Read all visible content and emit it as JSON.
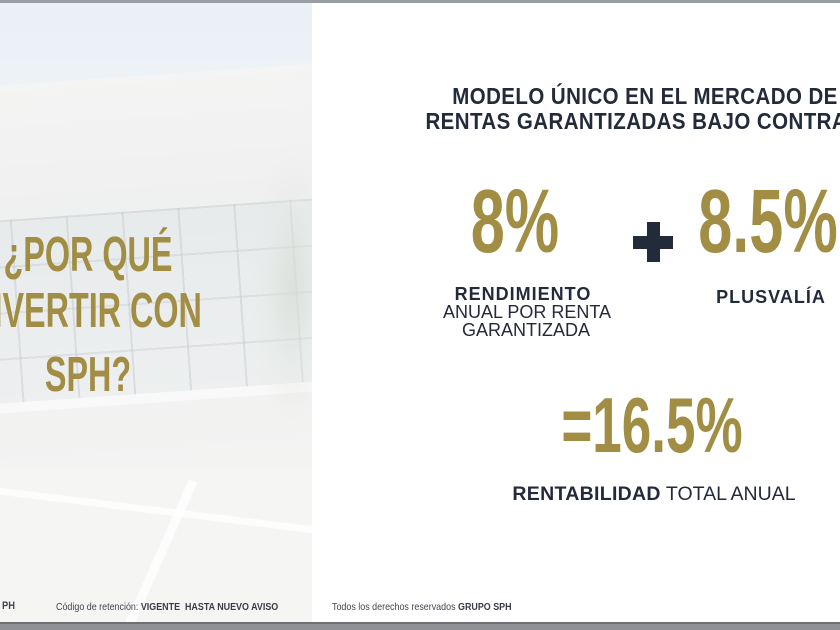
{
  "slide_title": {
    "lines": [
      "¿POR QUÉ",
      "INVERTIR CON",
      "SPH?"
    ]
  },
  "header": {
    "line1": "MODELO ÚNICO EN EL MERCADO DE",
    "line2": "RENTAS GARANTIZADAS BAJO CONTRATO"
  },
  "stats": {
    "yield_value": "8%",
    "yield_label_bold": "RENDIMIENTO",
    "yield_label_line2": "ANUAL POR RENTA",
    "yield_label_line3": "GARANTIZADA",
    "plus_symbol": "+",
    "appreciation_value": "8.5%",
    "appreciation_label": "PLUSVALÍA",
    "total_value": "=16.5%",
    "total_label_bold": "RENTABILIDAD",
    "total_label_regular": " TOTAL ANUAL"
  },
  "footer": {
    "brand_clipped": "PH",
    "retention_label": "Código de retención: ",
    "retention_value": "VIGENTE  HASTA NUEVO AVISO",
    "rights_label": "Todos los derechos reservados ",
    "rights_brand": "GRUPO SPH"
  },
  "colors": {
    "gold": "#a18d43",
    "navy": "#232a3a",
    "top_bar": "#989ea4",
    "bottom_bar": "#8f9196"
  }
}
